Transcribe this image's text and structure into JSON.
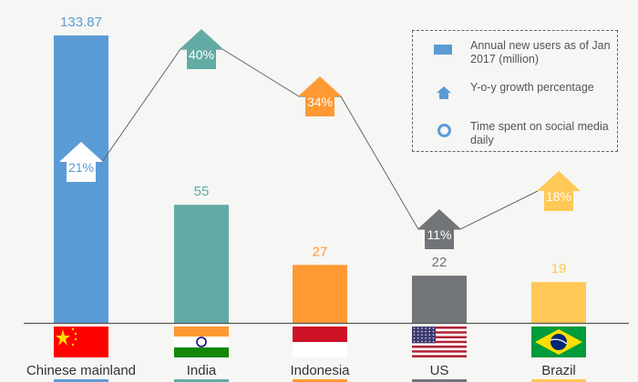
{
  "chart_data": {
    "type": "bar",
    "categories": [
      "Chinese mainland",
      "India",
      "Indonesia",
      "US",
      "Brazil"
    ],
    "series": [
      {
        "name": "Annual new users as of Jan 2017 (million)",
        "values": [
          133.87,
          55,
          27,
          22,
          19
        ],
        "labels": [
          "133.87",
          "55",
          "27",
          "22",
          "19"
        ]
      },
      {
        "name": "Y-o-y growth percentage",
        "values": [
          21,
          40,
          34,
          11,
          18
        ],
        "labels": [
          "21%",
          "40%",
          "34%",
          "11%",
          "18%"
        ],
        "marker": "up-arrow"
      }
    ],
    "colors": [
      "#5b9bd5",
      "#62aba5",
      "#ff9933",
      "#727578",
      "#ffc857"
    ],
    "flags": [
      "china-flag",
      "india-flag",
      "indonesia-flag",
      "us-flag",
      "brazil-flag"
    ],
    "ylim": [
      0,
      140
    ],
    "grid": false,
    "legend": {
      "placement": "top-right",
      "items": [
        {
          "label": "Annual new users as of Jan 2017 (million)",
          "icon": "rectangle",
          "color": "#5b9bd5"
        },
        {
          "label": "Y-o-y growth percentage",
          "icon": "up-arrow",
          "color": "#5b9bd5"
        },
        {
          "label": "Time spent on social media daily",
          "icon": "ring",
          "color": "#5b9bd5"
        }
      ]
    }
  }
}
